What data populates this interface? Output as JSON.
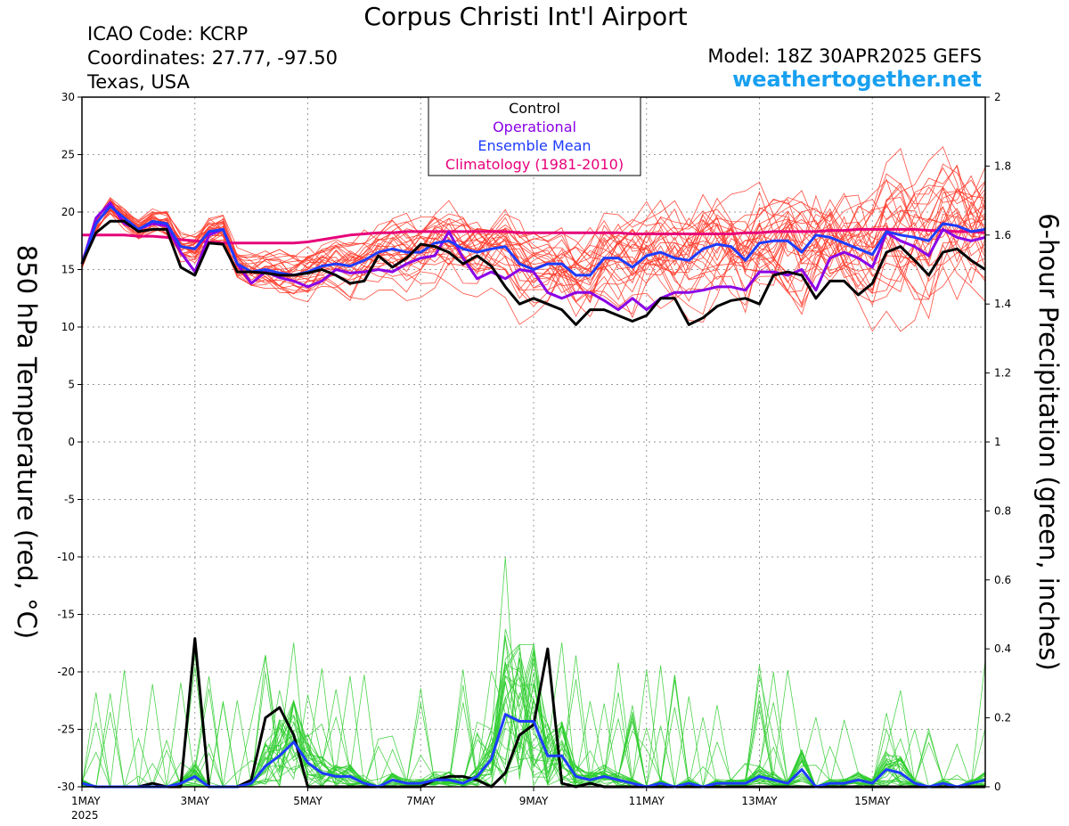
{
  "header": {
    "title": "Corpus Christi Int'l Airport",
    "icao": "ICAO Code: KCRP",
    "coordinates": "Coordinates: 27.77, -97.50",
    "region": "Texas, USA",
    "model": "Model: 18Z 30APR2025 GEFS",
    "site": "weathertogether.net"
  },
  "colors": {
    "control": "#000000",
    "operational": "#8a00e6",
    "ensemble_mean": "#1e3cff",
    "climatology": "#e6007a",
    "members_temp": "#ff3a2a",
    "members_precip": "#2ecc2e",
    "site": "#18a0f0"
  },
  "chart_data": {
    "type": "line",
    "xlabel": "",
    "ylabel": "850 hPa Temperature (red, °C)",
    "y2label": "6-hour Precipitation (green, inches)",
    "x_unit": "days since 1MAY 00Z (6-hour steps)",
    "xlim": [
      0,
      16
    ],
    "ylim": [
      -30,
      30
    ],
    "y2lim": [
      0,
      2
    ],
    "x_tick_labels": [
      "1MAY",
      "3MAY",
      "5MAY",
      "7MAY",
      "9MAY",
      "11MAY",
      "13MAY",
      "15MAY"
    ],
    "x_tick_values": [
      0,
      2,
      4,
      6,
      8,
      10,
      12,
      14
    ],
    "x_year_label": "2025",
    "y_ticks": [
      30,
      25,
      20,
      15,
      10,
      5,
      0,
      -5,
      -10,
      -15,
      -20,
      -25,
      -30
    ],
    "y2_ticks": [
      "2",
      "1.8",
      "1.6",
      "1.4",
      "1.2",
      "1",
      "0.8",
      "0.6",
      "0.4",
      "0.2",
      "0"
    ],
    "y2_tick_values": [
      2,
      1.8,
      1.6,
      1.4,
      1.2,
      1.0,
      0.8,
      0.6,
      0.4,
      0.2,
      0
    ],
    "grid": true,
    "legend": {
      "position": "top-center",
      "entries": [
        "Control",
        "Operational",
        "Ensemble Mean",
        "Climatology (1981-2010)"
      ]
    },
    "series": [
      {
        "name": "Control",
        "axis": "temperature",
        "values": [
          15.5,
          18.2,
          19.2,
          19.2,
          18.3,
          18.5,
          18.5,
          15.2,
          14.5,
          17.3,
          17.2,
          14.8,
          14.8,
          14.7,
          14.5,
          14.5,
          14.7,
          15.0,
          14.5,
          13.8,
          14.0,
          16.2,
          15.2,
          16.0,
          17.2,
          17.0,
          16.5,
          15.5,
          16.2,
          15.3,
          13.5,
          12.0,
          12.5,
          12.0,
          11.5,
          10.2,
          11.5,
          11.5,
          11.0,
          10.5,
          11.0,
          12.5,
          12.5,
          10.2,
          10.8,
          11.8,
          12.3,
          12.5,
          12.0,
          14.5,
          14.8,
          14.5,
          12.5,
          14.0,
          14.0,
          12.8,
          13.8,
          16.5,
          17.0,
          15.8,
          14.5,
          16.5,
          16.8,
          15.8,
          15.0
        ]
      },
      {
        "name": "Operational",
        "axis": "temperature",
        "values": [
          15.5,
          19.5,
          20.8,
          19.0,
          18.5,
          19.0,
          18.8,
          16.5,
          14.8,
          18.0,
          18.5,
          15.5,
          13.8,
          14.8,
          14.3,
          14.0,
          13.5,
          14.0,
          15.0,
          14.7,
          14.8,
          15.0,
          14.8,
          15.5,
          16.0,
          16.2,
          18.3,
          16.0,
          14.2,
          14.8,
          14.2,
          15.0,
          14.8,
          13.0,
          12.5,
          13.0,
          13.0,
          12.3,
          11.5,
          12.5,
          11.5,
          12.5,
          13.0,
          13.0,
          13.2,
          13.5,
          13.5,
          13.2,
          14.8,
          14.8,
          14.5,
          15.0,
          13.2,
          16.0,
          16.5,
          16.0,
          15.2,
          18.2,
          17.5,
          17.0,
          16.2,
          18.5,
          17.8,
          17.5,
          17.8
        ]
      },
      {
        "name": "Ensemble Mean",
        "axis": "temperature",
        "values": [
          15.5,
          19.0,
          20.5,
          19.5,
          18.5,
          19.2,
          19.0,
          17.0,
          16.8,
          18.3,
          18.5,
          15.5,
          14.8,
          15.0,
          14.7,
          14.5,
          14.8,
          15.3,
          15.5,
          15.3,
          15.8,
          16.5,
          16.8,
          16.5,
          16.5,
          17.3,
          17.5,
          16.8,
          16.5,
          16.8,
          17.0,
          15.5,
          15.0,
          15.5,
          15.5,
          14.5,
          14.5,
          16.0,
          16.0,
          15.2,
          16.2,
          16.5,
          16.0,
          15.8,
          16.8,
          17.2,
          17.0,
          15.8,
          17.3,
          17.5,
          17.5,
          16.5,
          18.0,
          17.8,
          17.3,
          16.8,
          16.3,
          18.3,
          18.0,
          17.8,
          17.5,
          19.0,
          18.8,
          18.3,
          18.5
        ]
      },
      {
        "name": "Climatology (1981-2010)",
        "axis": "temperature",
        "values": [
          18.0,
          18.0,
          18.0,
          18.0,
          17.9,
          17.9,
          17.8,
          17.6,
          17.5,
          17.4,
          17.3,
          17.3,
          17.3,
          17.3,
          17.3,
          17.3,
          17.4,
          17.6,
          17.8,
          18.0,
          18.1,
          18.2,
          18.2,
          18.3,
          18.3,
          18.3,
          18.3,
          18.3,
          18.3,
          18.3,
          18.3,
          18.2,
          18.2,
          18.2,
          18.2,
          18.2,
          18.2,
          18.2,
          18.2,
          18.1,
          18.1,
          18.1,
          18.1,
          18.1,
          18.1,
          18.1,
          18.1,
          18.2,
          18.2,
          18.3,
          18.3,
          18.3,
          18.3,
          18.4,
          18.4,
          18.5,
          18.5,
          18.5,
          18.5,
          18.5,
          18.4,
          18.4,
          18.3,
          18.3,
          18.2
        ]
      },
      {
        "name": "Control",
        "axis": "precipitation",
        "values": [
          0.01,
          0,
          0,
          0,
          0,
          0.01,
          0,
          0,
          0.43,
          0,
          0,
          0,
          0.02,
          0.2,
          0.23,
          0.15,
          0,
          0,
          0,
          0,
          0,
          0,
          0,
          0,
          0,
          0.02,
          0.03,
          0.03,
          0.02,
          0,
          0.04,
          0.15,
          0.18,
          0.4,
          0.01,
          0,
          0.01,
          0,
          0,
          0,
          0,
          0,
          0,
          0,
          0,
          0,
          0,
          0,
          0,
          0,
          0,
          0,
          0,
          0,
          0,
          0,
          0,
          0,
          0,
          0,
          0,
          0,
          0,
          0,
          0
        ]
      },
      {
        "name": "Ensemble Mean",
        "axis": "precipitation",
        "values": [
          0.01,
          0,
          0,
          0,
          0,
          0,
          0,
          0.01,
          0.03,
          0,
          0,
          0,
          0.01,
          0.06,
          0.09,
          0.13,
          0.07,
          0.04,
          0.03,
          0.03,
          0.01,
          0,
          0.02,
          0.01,
          0.01,
          0.02,
          0.02,
          0.01,
          0.03,
          0.08,
          0.21,
          0.19,
          0.19,
          0.09,
          0.09,
          0.03,
          0.02,
          0.03,
          0.02,
          0.01,
          0,
          0.01,
          0,
          0.01,
          0,
          0.01,
          0.01,
          0.01,
          0.03,
          0.02,
          0.01,
          0.05,
          0,
          0.01,
          0.01,
          0.02,
          0.01,
          0.05,
          0.04,
          0.01,
          0,
          0.01,
          0,
          0.01,
          0.02
        ]
      }
    ]
  }
}
